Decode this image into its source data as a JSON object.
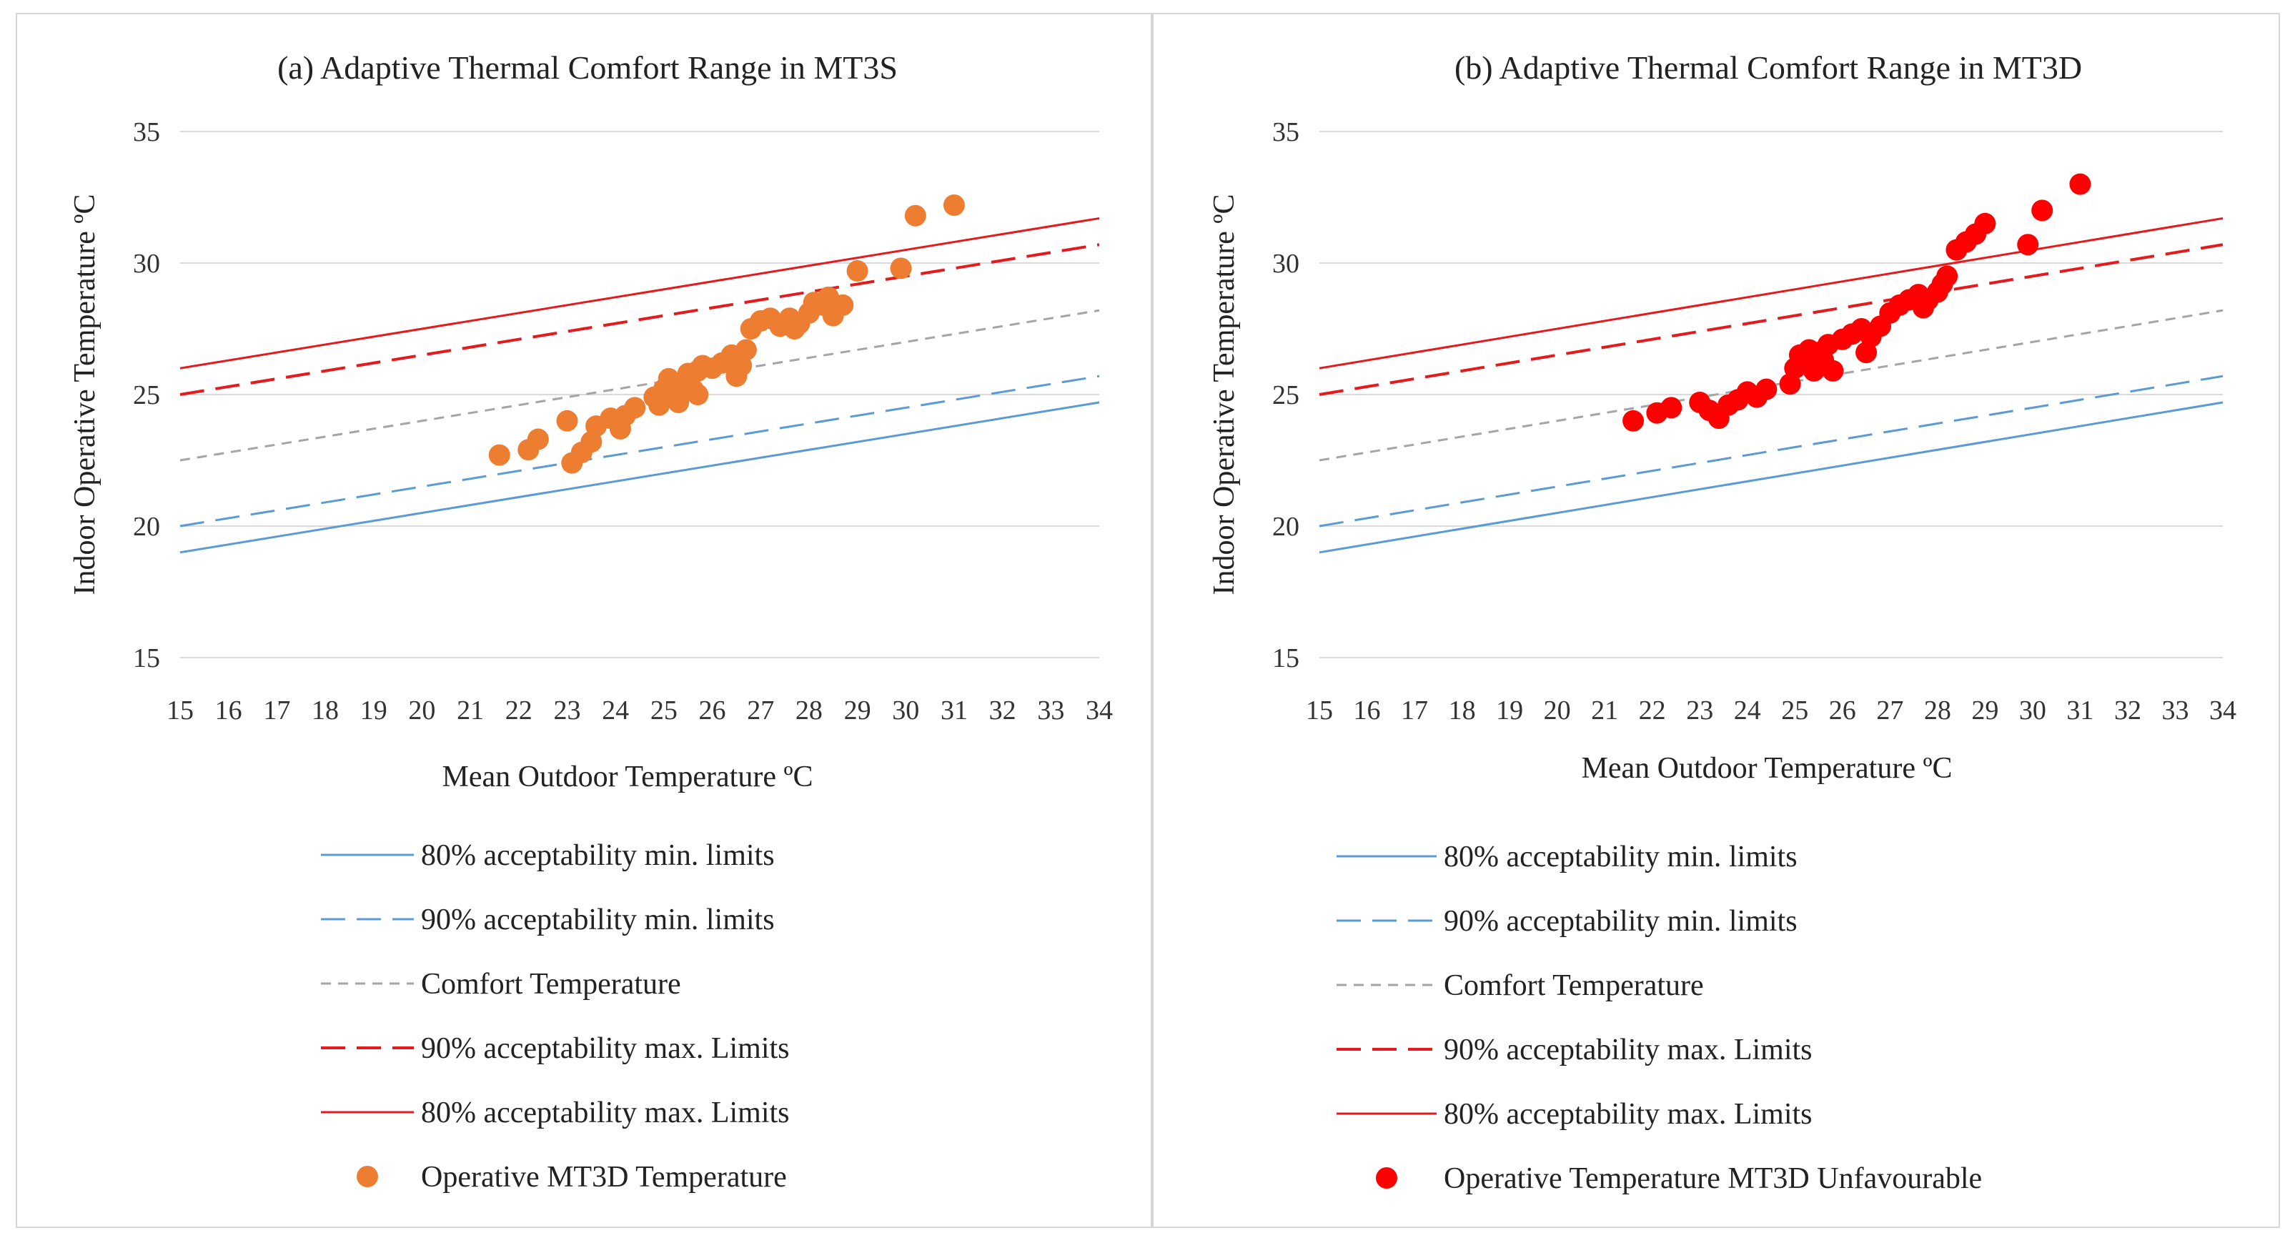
{
  "chart_data": [
    {
      "type": "scatter",
      "title": "(a) Adaptive Thermal Comfort Range in MT3S",
      "xlabel": "Mean Outdoor Temperature  ºC",
      "ylabel": "Indoor Operative Temperature  ºC",
      "xlim": [
        15,
        34
      ],
      "ylim": [
        15,
        35
      ],
      "xticks": [
        "15",
        "16",
        "17",
        "18",
        "19",
        "20",
        "21",
        "22",
        "23",
        "24",
        "25",
        "26",
        "27",
        "28",
        "29",
        "30",
        "31",
        "32",
        "33",
        "34"
      ],
      "yticks": [
        "15",
        "20",
        "25",
        "30",
        "35"
      ],
      "grid": true,
      "legend_position": "bottom",
      "series": [
        {
          "name": "80% acceptability min. limits",
          "kind": "line",
          "style": "solid",
          "width": 3,
          "color": "#5B9BD5",
          "x": [
            15,
            34
          ],
          "y": [
            19.0,
            24.7
          ]
        },
        {
          "name": "90% acceptability min. limits",
          "kind": "line",
          "style": "longdash",
          "width": 3,
          "color": "#5B9BD5",
          "x": [
            15,
            34
          ],
          "y": [
            20.0,
            25.7
          ]
        },
        {
          "name": "Comfort Temperature",
          "kind": "line",
          "style": "shortdash",
          "width": 3,
          "color": "#A5A5A5",
          "x": [
            15,
            34
          ],
          "y": [
            22.5,
            28.2
          ]
        },
        {
          "name": "90% acceptability max. Limits",
          "kind": "line",
          "style": "longdash",
          "width": 4,
          "color": "#E41A1C",
          "x": [
            15,
            34
          ],
          "y": [
            25.0,
            30.7
          ]
        },
        {
          "name": "80% acceptability max. Limits",
          "kind": "line",
          "style": "solid",
          "width": 3,
          "color": "#E41A1C",
          "x": [
            15,
            34
          ],
          "y": [
            26.0,
            31.7
          ]
        },
        {
          "name": "Operative MT3D Temperature",
          "kind": "scatter",
          "color": "#ED7D31",
          "points": [
            [
              21.6,
              22.7
            ],
            [
              22.2,
              22.9
            ],
            [
              22.4,
              23.3
            ],
            [
              23.0,
              24.0
            ],
            [
              23.1,
              22.4
            ],
            [
              23.3,
              22.8
            ],
            [
              23.5,
              23.2
            ],
            [
              23.6,
              23.8
            ],
            [
              23.9,
              24.1
            ],
            [
              24.1,
              23.7
            ],
            [
              24.2,
              24.2
            ],
            [
              24.4,
              24.5
            ],
            [
              24.8,
              24.9
            ],
            [
              24.9,
              24.6
            ],
            [
              25.0,
              25.2
            ],
            [
              25.1,
              25.6
            ],
            [
              25.2,
              25.0
            ],
            [
              25.3,
              24.7
            ],
            [
              25.4,
              25.5
            ],
            [
              25.5,
              25.8
            ],
            [
              25.6,
              25.2
            ],
            [
              25.7,
              25.9
            ],
            [
              25.7,
              25.0
            ],
            [
              25.8,
              26.1
            ],
            [
              26.0,
              26.0
            ],
            [
              26.2,
              26.2
            ],
            [
              26.4,
              26.5
            ],
            [
              26.5,
              25.7
            ],
            [
              26.6,
              26.1
            ],
            [
              26.7,
              26.7
            ],
            [
              26.8,
              27.5
            ],
            [
              27.0,
              27.8
            ],
            [
              27.2,
              27.9
            ],
            [
              27.4,
              27.6
            ],
            [
              27.6,
              27.9
            ],
            [
              27.7,
              27.5
            ],
            [
              27.8,
              27.7
            ],
            [
              28.0,
              28.1
            ],
            [
              28.1,
              28.5
            ],
            [
              28.3,
              28.4
            ],
            [
              28.4,
              28.7
            ],
            [
              28.5,
              28.0
            ],
            [
              28.7,
              28.4
            ],
            [
              29.0,
              29.7
            ],
            [
              29.9,
              29.8
            ],
            [
              30.2,
              31.8
            ],
            [
              31.0,
              32.2
            ]
          ]
        }
      ]
    },
    {
      "type": "scatter",
      "title": "(b) Adaptive Thermal Comfort Range in MT3D",
      "xlabel": "Mean Outdoor Temperature  ºC",
      "ylabel": "Indoor Operative Temperature  ºC",
      "xlim": [
        15,
        34
      ],
      "ylim": [
        15,
        35
      ],
      "xticks": [
        "15",
        "16",
        "17",
        "18",
        "19",
        "20",
        "21",
        "22",
        "23",
        "24",
        "25",
        "26",
        "27",
        "28",
        "29",
        "30",
        "31",
        "32",
        "33",
        "34"
      ],
      "yticks": [
        "15",
        "20",
        "25",
        "30",
        "35"
      ],
      "grid": true,
      "legend_position": "bottom",
      "series": [
        {
          "name": "80% acceptability min. limits",
          "kind": "line",
          "style": "solid",
          "width": 3,
          "color": "#5B9BD5",
          "x": [
            15,
            34
          ],
          "y": [
            19.0,
            24.7
          ]
        },
        {
          "name": "90% acceptability min. limits",
          "kind": "line",
          "style": "longdash",
          "width": 3,
          "color": "#5B9BD5",
          "x": [
            15,
            34
          ],
          "y": [
            20.0,
            25.7
          ]
        },
        {
          "name": "Comfort Temperature",
          "kind": "line",
          "style": "shortdash",
          "width": 3,
          "color": "#A5A5A5",
          "x": [
            15,
            34
          ],
          "y": [
            22.5,
            28.2
          ]
        },
        {
          "name": "90% acceptability max. Limits",
          "kind": "line",
          "style": "longdash",
          "width": 4,
          "color": "#E41A1C",
          "x": [
            15,
            34
          ],
          "y": [
            25.0,
            30.7
          ]
        },
        {
          "name": "80% acceptability max. Limits",
          "kind": "line",
          "style": "solid",
          "width": 3,
          "color": "#E41A1C",
          "x": [
            15,
            34
          ],
          "y": [
            26.0,
            31.7
          ]
        },
        {
          "name": "Operative Temperature MT3D Unfavourable",
          "kind": "scatter",
          "color": "#FF0000",
          "points": [
            [
              21.6,
              24.0
            ],
            [
              22.1,
              24.3
            ],
            [
              22.4,
              24.5
            ],
            [
              23.0,
              24.7
            ],
            [
              23.2,
              24.4
            ],
            [
              23.4,
              24.1
            ],
            [
              23.6,
              24.6
            ],
            [
              23.8,
              24.8
            ],
            [
              24.0,
              25.1
            ],
            [
              24.2,
              24.9
            ],
            [
              24.4,
              25.2
            ],
            [
              24.9,
              25.4
            ],
            [
              25.0,
              26.0
            ],
            [
              25.1,
              26.5
            ],
            [
              25.2,
              26.2
            ],
            [
              25.3,
              26.7
            ],
            [
              25.4,
              25.9
            ],
            [
              25.5,
              26.6
            ],
            [
              25.6,
              26.3
            ],
            [
              25.7,
              26.9
            ],
            [
              25.8,
              25.9
            ],
            [
              26.0,
              27.1
            ],
            [
              26.2,
              27.3
            ],
            [
              26.4,
              27.5
            ],
            [
              26.5,
              26.6
            ],
            [
              26.6,
              27.2
            ],
            [
              26.8,
              27.6
            ],
            [
              27.0,
              28.1
            ],
            [
              27.2,
              28.4
            ],
            [
              27.4,
              28.6
            ],
            [
              27.6,
              28.8
            ],
            [
              27.7,
              28.3
            ],
            [
              27.8,
              28.6
            ],
            [
              28.0,
              28.9
            ],
            [
              28.1,
              29.2
            ],
            [
              28.2,
              29.5
            ],
            [
              28.4,
              30.5
            ],
            [
              28.6,
              30.8
            ],
            [
              28.8,
              31.1
            ],
            [
              29.0,
              31.5
            ],
            [
              29.9,
              30.7
            ],
            [
              30.2,
              32.0
            ],
            [
              31.0,
              33.0
            ]
          ]
        }
      ]
    }
  ]
}
